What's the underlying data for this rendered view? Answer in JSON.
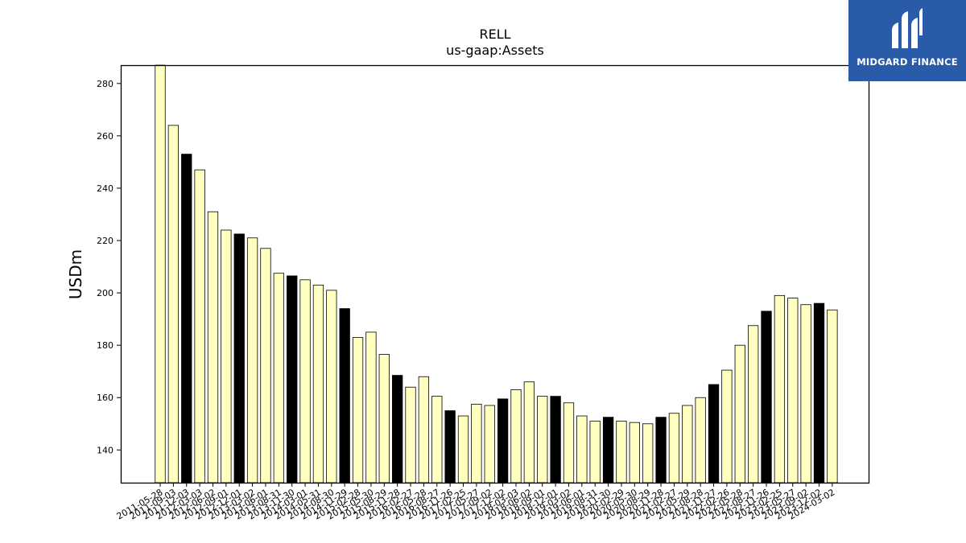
{
  "chart_data": {
    "type": "bar",
    "title": "RELL",
    "subtitle": "us-gaap:Assets",
    "xlabel": "",
    "ylabel": "USDm",
    "ylim": [
      127.5,
      287
    ],
    "yticks": [
      140,
      160,
      180,
      200,
      220,
      240,
      260,
      280
    ],
    "grid": false,
    "colors": {
      "light": "#ffffc0",
      "dark": "#000000",
      "edge": "#000000"
    },
    "categories": [
      "2011-05-28",
      "2011-09-03",
      "2011-12-03",
      "2012-03-03",
      "2012-06-02",
      "2012-09-01",
      "2012-12-01",
      "2013-03-02",
      "2013-06-01",
      "2013-08-31",
      "2013-11-30",
      "2014-03-01",
      "2014-05-31",
      "2014-08-30",
      "2014-11-29",
      "2015-02-28",
      "2015-05-30",
      "2015-08-29",
      "2015-11-28",
      "2016-02-27",
      "2016-05-28",
      "2016-08-27",
      "2016-11-26",
      "2017-02-25",
      "2017-05-27",
      "2017-09-02",
      "2017-12-02",
      "2018-03-03",
      "2018-06-02",
      "2018-09-01",
      "2018-12-01",
      "2019-03-02",
      "2019-06-01",
      "2019-08-31",
      "2019-11-30",
      "2020-02-29",
      "2020-05-30",
      "2020-08-29",
      "2020-11-28",
      "2021-02-27",
      "2021-05-29",
      "2021-08-28",
      "2021-11-27",
      "2022-02-26",
      "2022-05-28",
      "2022-08-27",
      "2022-11-26",
      "2023-02-25",
      "2023-05-27",
      "2023-09-02",
      "2023-12-02",
      "2024-03-02"
    ],
    "values": [
      287.0,
      264.0,
      253.0,
      247.0,
      231.0,
      224.0,
      222.5,
      221.0,
      217.0,
      207.5,
      206.5,
      205.0,
      203.0,
      201.0,
      194.0,
      183.0,
      185.0,
      176.5,
      168.5,
      164.0,
      168.0,
      160.5,
      155.0,
      153.0,
      157.5,
      157.0,
      159.5,
      163.0,
      166.0,
      160.5,
      160.5,
      158.0,
      153.0,
      151.0,
      152.5,
      151.0,
      150.5,
      150.0,
      152.5,
      154.0,
      157.0,
      160.0,
      165.0,
      170.5,
      180.0,
      187.5,
      193.0,
      199.0,
      198.0,
      195.5,
      196.0,
      193.5
    ],
    "highlight": [
      false,
      false,
      true,
      false,
      false,
      false,
      true,
      false,
      false,
      false,
      true,
      false,
      false,
      false,
      true,
      false,
      false,
      false,
      true,
      false,
      false,
      false,
      true,
      false,
      false,
      false,
      true,
      false,
      false,
      false,
      true,
      false,
      false,
      false,
      true,
      false,
      false,
      false,
      true,
      false,
      false,
      false,
      true,
      false,
      false,
      false,
      true,
      false,
      false,
      false,
      true,
      false
    ]
  },
  "logo": {
    "text": "MIDGARD FINANCE",
    "color": "#2a5ba8"
  }
}
